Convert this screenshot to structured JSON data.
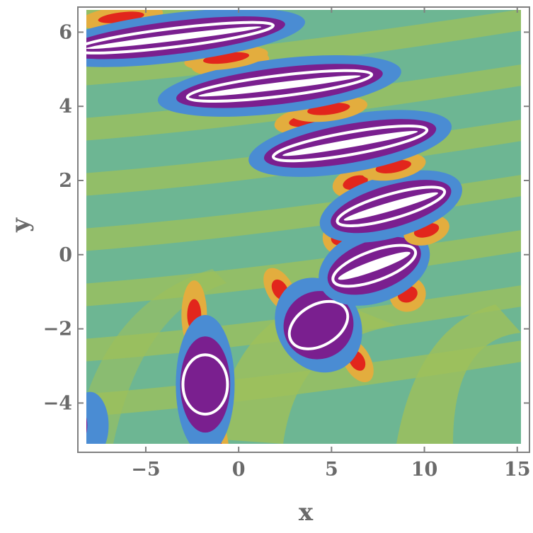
{
  "chart_data": {
    "type": "heatmap",
    "title": "",
    "xlabel": "x",
    "ylabel": "y",
    "xlim": [
      -8.2,
      15.2
    ],
    "ylim": [
      -5.1,
      6.6
    ],
    "x_ticks": [
      {
        "value": -5,
        "label": "−5"
      },
      {
        "value": 0,
        "label": "0"
      },
      {
        "value": 5,
        "label": "5"
      },
      {
        "value": 10,
        "label": "10"
      },
      {
        "value": 15,
        "label": "15"
      }
    ],
    "y_ticks": [
      {
        "value": -4,
        "label": "−4"
      },
      {
        "value": -2,
        "label": "−2"
      },
      {
        "value": 0,
        "label": "0"
      },
      {
        "value": 2,
        "label": "2"
      },
      {
        "value": 4,
        "label": "4"
      },
      {
        "value": 6,
        "label": "6"
      }
    ],
    "grid": false,
    "legend": "none",
    "palette": {
      "background": "#6db693",
      "band_light": "#9fc05a",
      "orange": "#e3ad3e",
      "red": "#e2261c",
      "blue": "#4a8cd3",
      "purple": "#7a1f8f",
      "white": "#ffffff",
      "frame": "#808080"
    },
    "features": [
      {
        "type": "dipole",
        "cx": -1.8,
        "cy": -3.5,
        "hw": 1.2,
        "hh": 0.8,
        "angle_deg": 0
      },
      {
        "type": "dipole",
        "cx": 4.3,
        "cy": -1.9,
        "hw": 1.7,
        "hh": 0.55,
        "angle_deg": -30
      },
      {
        "type": "dipole",
        "cx": 7.3,
        "cy": -0.3,
        "hw": 2.35,
        "hh": 0.4,
        "angle_deg": -20
      },
      {
        "type": "dipole",
        "cx": 8.2,
        "cy": 1.3,
        "hw": 3.0,
        "hh": 0.33,
        "angle_deg": -16
      },
      {
        "type": "dipole",
        "cx": 6.0,
        "cy": 3.0,
        "hw": 4.2,
        "hh": 0.3,
        "angle_deg": -10
      },
      {
        "type": "dipole",
        "cx": 2.2,
        "cy": 4.55,
        "hw": 5.0,
        "hh": 0.28,
        "angle_deg": -7
      },
      {
        "type": "dipole",
        "cx": -3.5,
        "cy": 5.85,
        "hw": 5.4,
        "hh": 0.25,
        "angle_deg": -7
      },
      {
        "type": "corner-blob",
        "cx": -8.0,
        "cy": -4.6,
        "hw": 1.0,
        "hh": 0.9,
        "angle_deg": 0
      }
    ]
  }
}
